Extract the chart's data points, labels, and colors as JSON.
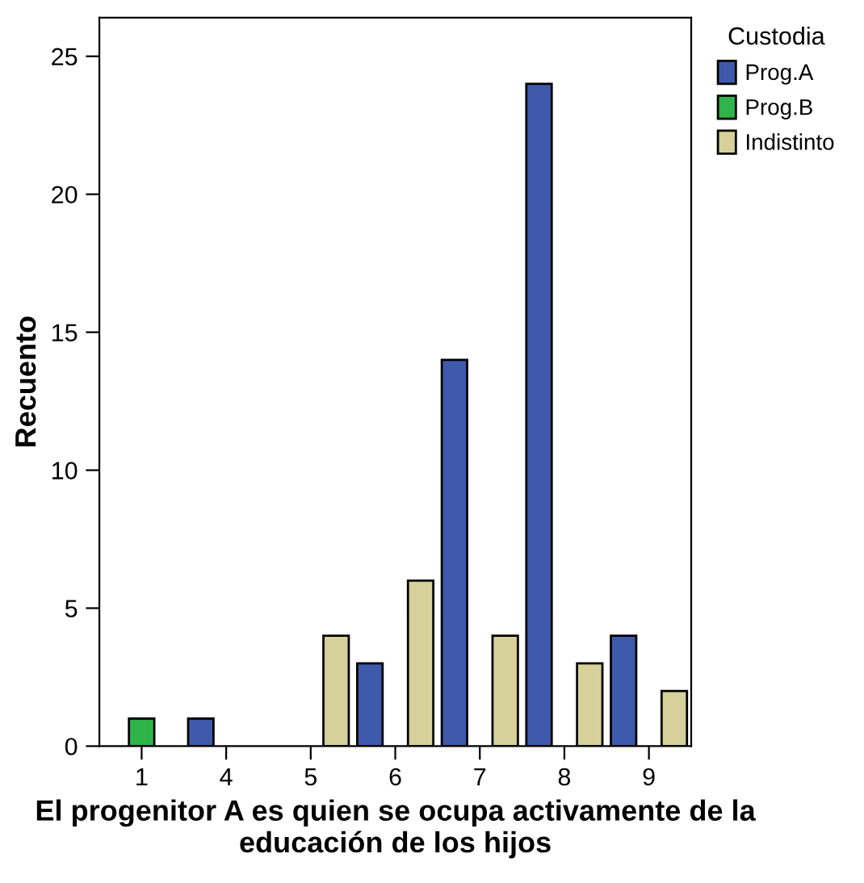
{
  "chart_data": {
    "type": "bar",
    "xlabel": "El progenitor A es quien se ocupa activamente de la educación de los hijos",
    "ylabel": "Recuento",
    "legend_title": "Custodia",
    "legend": "top right",
    "categories": [
      "1",
      "4",
      "5",
      "6",
      "7",
      "8",
      "9"
    ],
    "series": [
      {
        "name": "Prog.A",
        "color": "#3f5aab",
        "values": [
          null,
          1,
          null,
          3,
          14,
          24,
          4
        ]
      },
      {
        "name": "Prog.B",
        "color": "#2fb44a",
        "values": [
          1,
          null,
          null,
          null,
          null,
          null,
          null
        ]
      },
      {
        "name": "Indistinto",
        "color": "#d6d09a",
        "values": [
          null,
          null,
          4,
          6,
          4,
          3,
          2
        ]
      }
    ],
    "ylim": [
      0,
      26.4
    ],
    "yticks": [
      0,
      5,
      10,
      15,
      20,
      25
    ],
    "grid": false
  }
}
